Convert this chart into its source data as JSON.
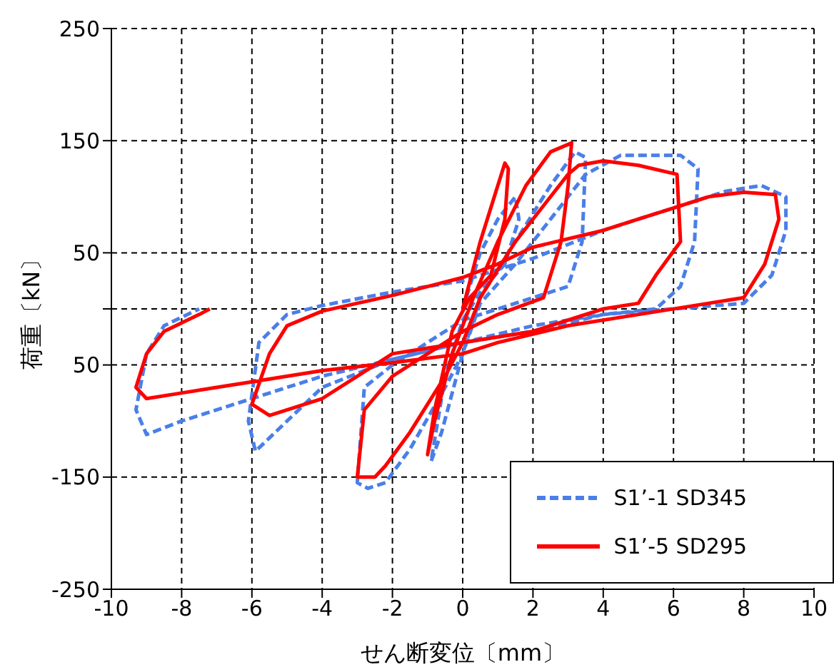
{
  "chart_data": {
    "type": "line",
    "xlabel": "せん断変位〔mm〕",
    "ylabel": "荷重〔kN〕",
    "xlim": [
      -10,
      10
    ],
    "xticks": [
      -10,
      -8,
      -6,
      -4,
      -2,
      0,
      2,
      4,
      6,
      8,
      10
    ],
    "ylim": [
      -250,
      250
    ],
    "yticks": [
      -250,
      -150,
      {
        "value": -50,
        "label": "50"
      },
      {
        "value": 0,
        "label": null
      },
      50,
      150,
      250
    ],
    "grid": true,
    "legend": "bottom right",
    "marker": "none",
    "series": [
      {
        "name": "S1’-1 SD345",
        "color": "#4a7fe8",
        "line_style": "dashed",
        "x": [
          0,
          0.5,
          1.0,
          1.5,
          1.6,
          1.2,
          0.5,
          0,
          -0.5,
          -0.9,
          -0.6,
          0,
          0.5,
          1.5,
          2.5,
          3.2,
          3.5,
          3.4,
          3.0,
          1.5,
          0,
          -1,
          -2,
          -2.8,
          -3.0,
          -2.7,
          -2.2,
          -1.5,
          -0.5,
          0,
          0.5,
          1.5,
          2.5,
          3.5,
          4.5,
          6.2,
          6.7,
          6.6,
          6.2,
          5.5,
          4,
          2,
          0,
          -2,
          -4,
          -5.9,
          -6.1,
          -5.8,
          -5,
          -4,
          -2,
          0,
          2,
          4,
          6,
          7.5,
          8.5,
          9.2,
          9.2,
          8.8,
          8.0,
          6,
          4,
          2,
          0,
          -2,
          -4,
          -6,
          -8,
          -9.0,
          -9.3,
          -9.0,
          -8.5,
          -7.5
        ],
        "values": [
          0,
          50,
          80,
          100,
          80,
          40,
          15,
          -10,
          -60,
          -136,
          -110,
          -40,
          10,
          60,
          110,
          140,
          135,
          60,
          20,
          5,
          -10,
          -30,
          -50,
          -70,
          -155,
          -160,
          -155,
          -125,
          -70,
          -40,
          5,
          40,
          80,
          120,
          137,
          137,
          125,
          60,
          20,
          0,
          -5,
          -20,
          -30,
          -45,
          -70,
          -127,
          -100,
          -30,
          -5,
          3,
          15,
          25,
          45,
          70,
          90,
          105,
          110,
          100,
          70,
          30,
          5,
          0,
          -5,
          -15,
          -30,
          -45,
          -60,
          -80,
          -100,
          -112,
          -90,
          -40,
          -15,
          0
        ]
      },
      {
        "name": "S1’-5 SD295",
        "color": "#ff0000",
        "line_style": "solid",
        "x": [
          0,
          0.5,
          1.0,
          1.2,
          1.3,
          1.2,
          0.8,
          0.2,
          -0.3,
          -0.8,
          -1.0,
          -0.8,
          -0.3,
          0.3,
          1.0,
          1.8,
          2.5,
          3.1,
          3.0,
          2.8,
          2.3,
          1.0,
          0,
          -1,
          -2,
          -2.8,
          -3.0,
          -2.5,
          -2.2,
          -1.5,
          -0.5,
          0,
          0.5,
          1.5,
          2.5,
          3.0,
          3.3,
          4.0,
          5.0,
          6.1,
          6.2,
          5.5,
          5.0,
          4,
          2,
          0,
          -1,
          -2,
          -3,
          -4,
          -5.5,
          -6.0,
          -5.5,
          -5.0,
          -4.0,
          -3,
          -2,
          -1,
          0,
          1,
          2,
          4,
          5,
          6,
          7,
          8,
          8.9,
          9.0,
          8.6,
          8.0,
          7.0,
          5,
          3,
          1,
          0,
          -2,
          -4,
          -6,
          -7,
          -8,
          -9.0,
          -9.3,
          -9.0,
          -8.5,
          -7.5,
          -7.2
        ],
        "values": [
          0,
          60,
          110,
          130,
          125,
          80,
          30,
          10,
          -20,
          -90,
          -130,
          -100,
          -40,
          10,
          60,
          110,
          140,
          148,
          110,
          60,
          10,
          -5,
          -20,
          -40,
          -60,
          -90,
          -150,
          -150,
          -140,
          -110,
          -60,
          -30,
          10,
          60,
          100,
          120,
          128,
          132,
          128,
          120,
          60,
          30,
          5,
          0,
          -20,
          -30,
          -35,
          -40,
          -60,
          -80,
          -95,
          -85,
          -40,
          -15,
          -2,
          5,
          12,
          20,
          28,
          40,
          55,
          70,
          80,
          90,
          100,
          104,
          102,
          80,
          40,
          10,
          5,
          -5,
          -15,
          -30,
          -40,
          -48,
          -55,
          -65,
          -70,
          -75,
          -80,
          -70,
          -40,
          -20,
          -5,
          0
        ]
      }
    ]
  }
}
